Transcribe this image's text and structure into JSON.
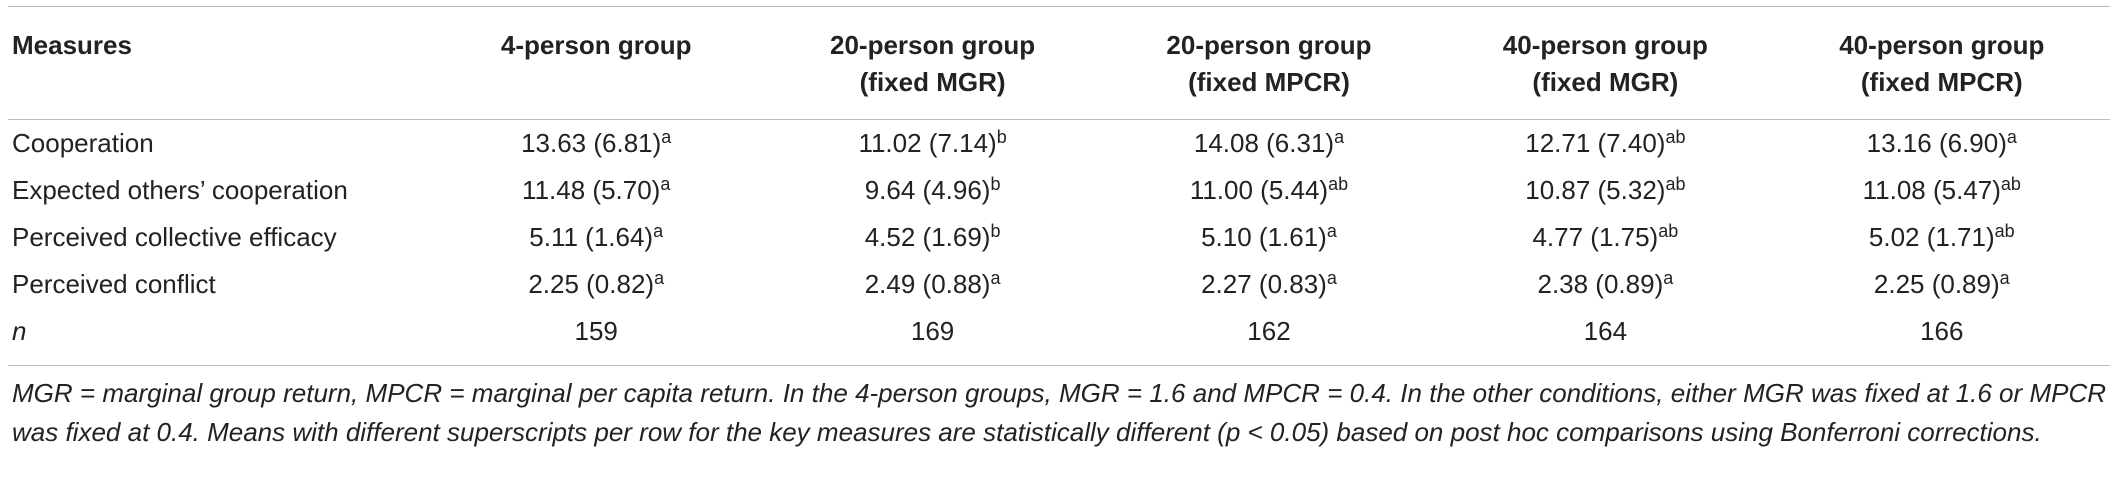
{
  "table": {
    "header": [
      [
        "Measures"
      ],
      [
        "4-person group"
      ],
      [
        "20-person group",
        "(fixed MGR)"
      ],
      [
        "20-person group",
        "(fixed MPCR)"
      ],
      [
        "40-person group",
        "(fixed MGR)"
      ],
      [
        "40-person group",
        "(fixed MPCR)"
      ]
    ],
    "rows": [
      {
        "label": "Cooperation",
        "cells": [
          {
            "text": "13.63 (6.81)",
            "sup": "a"
          },
          {
            "text": "11.02 (7.14)",
            "sup": "b"
          },
          {
            "text": "14.08 (6.31)",
            "sup": "a"
          },
          {
            "text": "12.71 (7.40)",
            "sup": "ab"
          },
          {
            "text": "13.16 (6.90)",
            "sup": "a"
          }
        ]
      },
      {
        "label": "Expected others’ cooperation",
        "cells": [
          {
            "text": "11.48 (5.70)",
            "sup": "a"
          },
          {
            "text": "9.64 (4.96)",
            "sup": "b"
          },
          {
            "text": "11.00 (5.44)",
            "sup": "ab"
          },
          {
            "text": "10.87 (5.32)",
            "sup": "ab"
          },
          {
            "text": "11.08 (5.47)",
            "sup": "ab"
          }
        ]
      },
      {
        "label": "Perceived collective efficacy",
        "cells": [
          {
            "text": "5.11 (1.64)",
            "sup": "a"
          },
          {
            "text": "4.52 (1.69)",
            "sup": "b"
          },
          {
            "text": "5.10 (1.61)",
            "sup": "a"
          },
          {
            "text": "4.77 (1.75)",
            "sup": "ab"
          },
          {
            "text": "5.02 (1.71)",
            "sup": "ab"
          }
        ]
      },
      {
        "label": "Perceived conflict",
        "cells": [
          {
            "text": "2.25 (0.82)",
            "sup": "a"
          },
          {
            "text": "2.49 (0.88)",
            "sup": "a"
          },
          {
            "text": "2.27 (0.83)",
            "sup": "a"
          },
          {
            "text": "2.38 (0.89)",
            "sup": "a"
          },
          {
            "text": "2.25 (0.89)",
            "sup": "a"
          }
        ]
      },
      {
        "label": "n",
        "italic": true,
        "cells": [
          {
            "text": "159"
          },
          {
            "text": "169"
          },
          {
            "text": "162"
          },
          {
            "text": "164"
          },
          {
            "text": "166"
          }
        ]
      }
    ],
    "footnote": "MGR = marginal group return, MPCR = marginal per capita return. In the 4-person groups, MGR = 1.6 and MPCR = 0.4. In the other conditions, either MGR was fixed at 1.6 or MPCR was fixed at 0.4. Means with different superscripts per row for the key measures are statistically different (p < 0.05) based on post hoc comparisons using Bonferroni corrections."
  }
}
